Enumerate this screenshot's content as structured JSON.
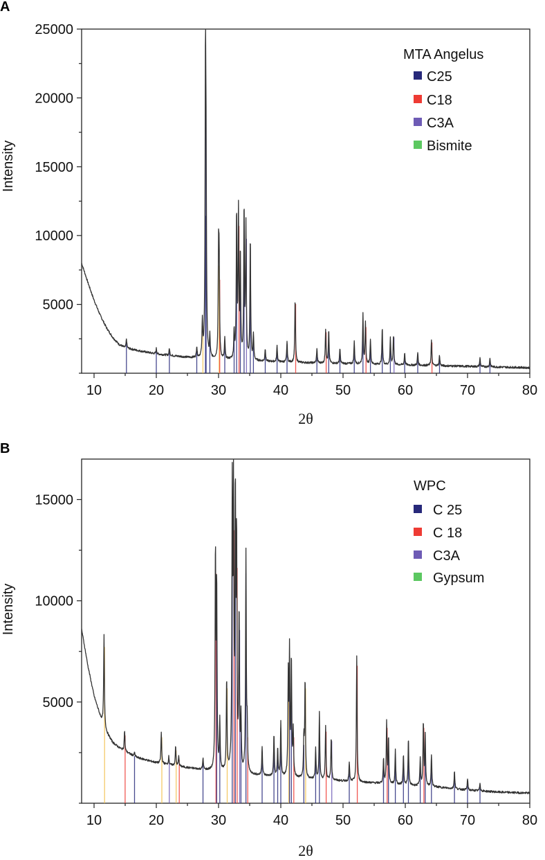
{
  "chart_data": [
    {
      "panel": "A",
      "type": "line",
      "xlabel": "2θ",
      "ylabel": "Intensity",
      "xlim": [
        8,
        80
      ],
      "ylim": [
        0,
        25000
      ],
      "xticks": [
        10,
        20,
        30,
        40,
        50,
        60,
        70,
        80
      ],
      "yticks": [
        5000,
        10000,
        15000,
        20000,
        25000
      ],
      "legend": {
        "title": "MTA Angelus",
        "position": "top-right",
        "entries": [
          {
            "name": "C25",
            "color": "#27297a"
          },
          {
            "name": "C18",
            "color": "#ee3b34"
          },
          {
            "name": "C3A",
            "color": "#6e5bb5"
          },
          {
            "name": "Bismite",
            "color": "#5cc861"
          }
        ]
      },
      "background": [
        [
          8,
          8000
        ],
        [
          9,
          6600
        ],
        [
          10,
          5300
        ],
        [
          11,
          4200
        ],
        [
          12,
          3300
        ],
        [
          13,
          2600
        ],
        [
          14,
          2100
        ],
        [
          15,
          1850
        ],
        [
          17,
          1650
        ],
        [
          20,
          1400
        ],
        [
          25,
          1150
        ],
        [
          30,
          1000
        ],
        [
          35,
          900
        ],
        [
          40,
          820
        ],
        [
          45,
          750
        ],
        [
          50,
          700
        ],
        [
          55,
          650
        ],
        [
          60,
          600
        ],
        [
          65,
          550
        ],
        [
          70,
          500
        ],
        [
          75,
          450
        ],
        [
          80,
          400
        ]
      ],
      "peaks": [
        {
          "x": 15.2,
          "y": 2500,
          "phase": "C25"
        },
        {
          "x": 20.0,
          "y": 1800,
          "phase": "C25"
        },
        {
          "x": 22.1,
          "y": 1800,
          "phase": "C25"
        },
        {
          "x": 26.5,
          "y": 1900,
          "phase": "C25"
        },
        {
          "x": 27.4,
          "y": 3700,
          "phase": "Bismite"
        },
        {
          "x": 27.9,
          "y": 22500,
          "phase": "C25"
        },
        {
          "x": 28.0,
          "y": 12300,
          "phase": "C25"
        },
        {
          "x": 28.6,
          "y": 2600,
          "phase": "C25"
        },
        {
          "x": 30.0,
          "y": 8400,
          "phase": "Bismite"
        },
        {
          "x": 30.1,
          "y": 7300,
          "phase": "C18"
        },
        {
          "x": 31.0,
          "y": 2500,
          "phase": "C25"
        },
        {
          "x": 32.5,
          "y": 3000,
          "phase": "C25"
        },
        {
          "x": 32.9,
          "y": 11600,
          "phase": "C25"
        },
        {
          "x": 33.2,
          "y": 11500,
          "phase": "C18"
        },
        {
          "x": 33.5,
          "y": 8500,
          "phase": "C25"
        },
        {
          "x": 34.1,
          "y": 11900,
          "phase": "C25"
        },
        {
          "x": 34.4,
          "y": 10500,
          "phase": "C3A"
        },
        {
          "x": 35.1,
          "y": 9800,
          "phase": "C25"
        },
        {
          "x": 35.6,
          "y": 2800,
          "phase": "C25"
        },
        {
          "x": 37.5,
          "y": 1800,
          "phase": "C25"
        },
        {
          "x": 39.4,
          "y": 2000,
          "phase": "C25"
        },
        {
          "x": 41.0,
          "y": 2300,
          "phase": "C25"
        },
        {
          "x": 42.3,
          "y": 5400,
          "phase": "C18"
        },
        {
          "x": 45.8,
          "y": 1800,
          "phase": "C25"
        },
        {
          "x": 47.2,
          "y": 3200,
          "phase": "C18"
        },
        {
          "x": 47.7,
          "y": 3100,
          "phase": "C25"
        },
        {
          "x": 49.5,
          "y": 1800,
          "phase": "C25"
        },
        {
          "x": 51.8,
          "y": 2300,
          "phase": "C25"
        },
        {
          "x": 53.2,
          "y": 4300,
          "phase": "C25"
        },
        {
          "x": 53.6,
          "y": 3600,
          "phase": "C18"
        },
        {
          "x": 54.4,
          "y": 2500,
          "phase": "C25"
        },
        {
          "x": 56.3,
          "y": 3300,
          "phase": "C25"
        },
        {
          "x": 57.6,
          "y": 2600,
          "phase": "C25"
        },
        {
          "x": 58.1,
          "y": 2800,
          "phase": "C3A"
        },
        {
          "x": 59.9,
          "y": 1500,
          "phase": "C25"
        },
        {
          "x": 62.0,
          "y": 1500,
          "phase": "C25"
        },
        {
          "x": 64.2,
          "y": 2400,
          "phase": "C18"
        },
        {
          "x": 65.5,
          "y": 1300,
          "phase": "C25"
        },
        {
          "x": 72.0,
          "y": 1100,
          "phase": "C25"
        },
        {
          "x": 73.6,
          "y": 1100,
          "phase": "C25"
        }
      ]
    },
    {
      "panel": "B",
      "type": "line",
      "xlabel": "2θ",
      "ylabel": "Intensity",
      "xlim": [
        8,
        80
      ],
      "ylim": [
        0,
        17000
      ],
      "xticks": [
        10,
        20,
        30,
        40,
        50,
        60,
        70,
        80
      ],
      "yticks": [
        5000,
        10000,
        15000
      ],
      "legend": {
        "title": "WPC",
        "position": "top-right",
        "entries": [
          {
            "name": "C 25",
            "color": "#27297a"
          },
          {
            "name": "C 18",
            "color": "#ee3b34"
          },
          {
            "name": "C3A",
            "color": "#6e5bb5"
          },
          {
            "name": "Gypsum",
            "color": "#5cc861"
          }
        ]
      },
      "background": [
        [
          8,
          8600
        ],
        [
          9,
          6800
        ],
        [
          10,
          5300
        ],
        [
          11,
          4300
        ],
        [
          12,
          3500
        ],
        [
          13,
          3000
        ],
        [
          14,
          2750
        ],
        [
          15,
          2550
        ],
        [
          17,
          2250
        ],
        [
          20,
          2000
        ],
        [
          25,
          1750
        ],
        [
          30,
          1550
        ],
        [
          35,
          1400
        ],
        [
          40,
          1300
        ],
        [
          45,
          1200
        ],
        [
          50,
          1100
        ],
        [
          55,
          1000
        ],
        [
          60,
          900
        ],
        [
          65,
          800
        ],
        [
          70,
          650
        ],
        [
          75,
          550
        ],
        [
          80,
          500
        ]
      ],
      "peaks": [
        {
          "x": 11.6,
          "y": 8300,
          "phase": "Gypsum"
        },
        {
          "x": 14.9,
          "y": 3600,
          "phase": "C18"
        },
        {
          "x": 16.5,
          "y": 2500,
          "phase": "C25"
        },
        {
          "x": 20.8,
          "y": 3500,
          "phase": "Gypsum"
        },
        {
          "x": 22.0,
          "y": 2300,
          "phase": "C3A"
        },
        {
          "x": 23.1,
          "y": 2800,
          "phase": "Gypsum"
        },
        {
          "x": 23.6,
          "y": 2300,
          "phase": "C18"
        },
        {
          "x": 27.5,
          "y": 2200,
          "phase": "C25"
        },
        {
          "x": 29.5,
          "y": 12200,
          "phase": "C18"
        },
        {
          "x": 29.7,
          "y": 10500,
          "phase": "C25"
        },
        {
          "x": 30.2,
          "y": 4000,
          "phase": "C25"
        },
        {
          "x": 31.3,
          "y": 6100,
          "phase": "Gypsum"
        },
        {
          "x": 32.2,
          "y": 15000,
          "phase": "C25"
        },
        {
          "x": 32.4,
          "y": 14500,
          "phase": "C18"
        },
        {
          "x": 32.7,
          "y": 14600,
          "phase": "C25"
        },
        {
          "x": 32.9,
          "y": 12500,
          "phase": "C18"
        },
        {
          "x": 33.3,
          "y": 9200,
          "phase": "C3A"
        },
        {
          "x": 33.6,
          "y": 4000,
          "phase": "C25"
        },
        {
          "x": 34.4,
          "y": 12200,
          "phase": "C25"
        },
        {
          "x": 34.6,
          "y": 3500,
          "phase": "C18"
        },
        {
          "x": 37.0,
          "y": 2800,
          "phase": "C25"
        },
        {
          "x": 38.9,
          "y": 3400,
          "phase": "C25"
        },
        {
          "x": 39.5,
          "y": 2700,
          "phase": "C25"
        },
        {
          "x": 40.0,
          "y": 4000,
          "phase": "C25"
        },
        {
          "x": 41.2,
          "y": 6100,
          "phase": "Gypsum"
        },
        {
          "x": 41.4,
          "y": 7200,
          "phase": "C25"
        },
        {
          "x": 41.7,
          "y": 7000,
          "phase": "C25"
        },
        {
          "x": 42.0,
          "y": 3500,
          "phase": "C18"
        },
        {
          "x": 43.7,
          "y": 3100,
          "phase": "C25"
        },
        {
          "x": 43.9,
          "y": 6100,
          "phase": "Gypsum"
        },
        {
          "x": 45.6,
          "y": 2700,
          "phase": "C25"
        },
        {
          "x": 46.2,
          "y": 4500,
          "phase": "C25"
        },
        {
          "x": 47.2,
          "y": 3800,
          "phase": "C18"
        },
        {
          "x": 48.1,
          "y": 3300,
          "phase": "C3A"
        },
        {
          "x": 51.0,
          "y": 2000,
          "phase": "C25"
        },
        {
          "x": 52.2,
          "y": 7300,
          "phase": "C18"
        },
        {
          "x": 56.5,
          "y": 2200,
          "phase": "C25"
        },
        {
          "x": 57.0,
          "y": 4000,
          "phase": "C18"
        },
        {
          "x": 57.3,
          "y": 3200,
          "phase": "C25"
        },
        {
          "x": 58.4,
          "y": 2600,
          "phase": "C25"
        },
        {
          "x": 59.7,
          "y": 2400,
          "phase": "C25"
        },
        {
          "x": 60.5,
          "y": 3200,
          "phase": "C25"
        },
        {
          "x": 62.4,
          "y": 2200,
          "phase": "C25"
        },
        {
          "x": 62.9,
          "y": 4000,
          "phase": "C18"
        },
        {
          "x": 63.2,
          "y": 3300,
          "phase": "C25"
        },
        {
          "x": 64.2,
          "y": 2400,
          "phase": "C25"
        },
        {
          "x": 67.9,
          "y": 1600,
          "phase": "C25"
        },
        {
          "x": 70.0,
          "y": 1200,
          "phase": "C25"
        },
        {
          "x": 72.0,
          "y": 1000,
          "phase": "C25"
        }
      ]
    }
  ]
}
